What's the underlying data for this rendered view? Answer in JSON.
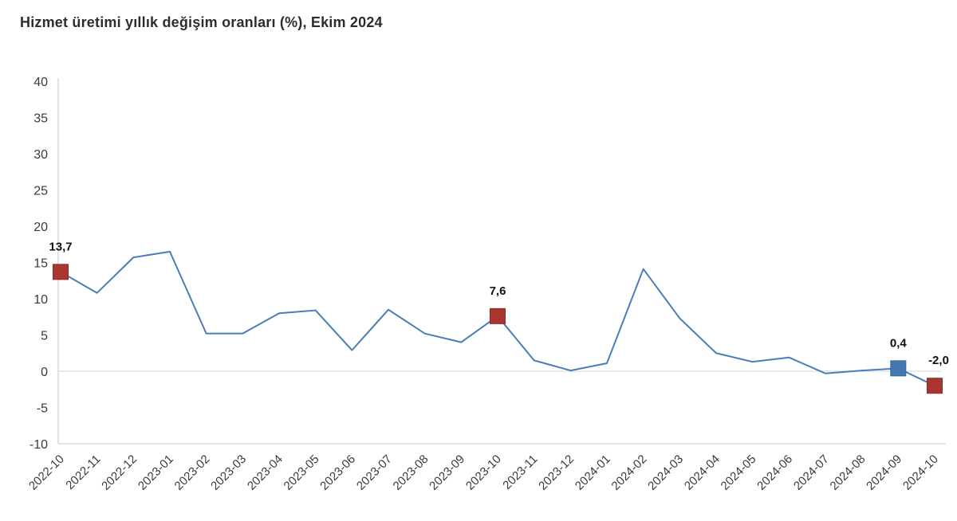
{
  "title": "Hizmet üretimi yıllık değişim oranları (%), Ekim 2024",
  "chart_data": {
    "type": "line",
    "categories": [
      "2022-10",
      "2022-11",
      "2022-12",
      "2023-01",
      "2023-02",
      "2023-03",
      "2023-04",
      "2023-05",
      "2023-06",
      "2023-07",
      "2023-08",
      "2023-09",
      "2023-10",
      "2023-11",
      "2023-12",
      "2024-01",
      "2024-02",
      "2024-03",
      "2024-04",
      "2024-05",
      "2024-06",
      "2024-07",
      "2024-08",
      "2024-09",
      "2024-10"
    ],
    "values": [
      13.7,
      10.8,
      15.7,
      16.5,
      5.2,
      5.2,
      8.0,
      8.4,
      2.9,
      8.5,
      5.2,
      4.0,
      7.6,
      1.5,
      0.1,
      1.1,
      14.1,
      7.3,
      2.5,
      1.3,
      1.9,
      -0.3,
      0.1,
      0.4,
      -2.0
    ],
    "ylim": [
      -10,
      40
    ],
    "yticks": [
      40,
      35,
      30,
      25,
      20,
      15,
      10,
      5,
      0,
      -5,
      -10
    ],
    "grid": "zero-line-only",
    "legend": "none",
    "xlabel": "",
    "ylabel": "",
    "annotations": [
      {
        "category": "2022-10",
        "index": 0,
        "label": "13,7",
        "marker_color": "#a93530",
        "marker_edge": "#8c2a26"
      },
      {
        "category": "2023-10",
        "index": 12,
        "label": "7,6",
        "marker_color": "#a93530",
        "marker_edge": "#8c2a26"
      },
      {
        "category": "2024-09",
        "index": 23,
        "label": "0,4",
        "marker_color": "#4478b1",
        "marker_edge": "#38659a"
      },
      {
        "category": "2024-10",
        "index": 24,
        "label": "-2,0",
        "marker_color": "#a93530",
        "marker_edge": "#8c2a26"
      }
    ],
    "colors": {
      "line": "#4a7db8",
      "axis": "#d4d4d4",
      "zero_line": "#dcdcdc",
      "tick_text": "#3a3a3a",
      "annotation_text": "#111111"
    }
  }
}
